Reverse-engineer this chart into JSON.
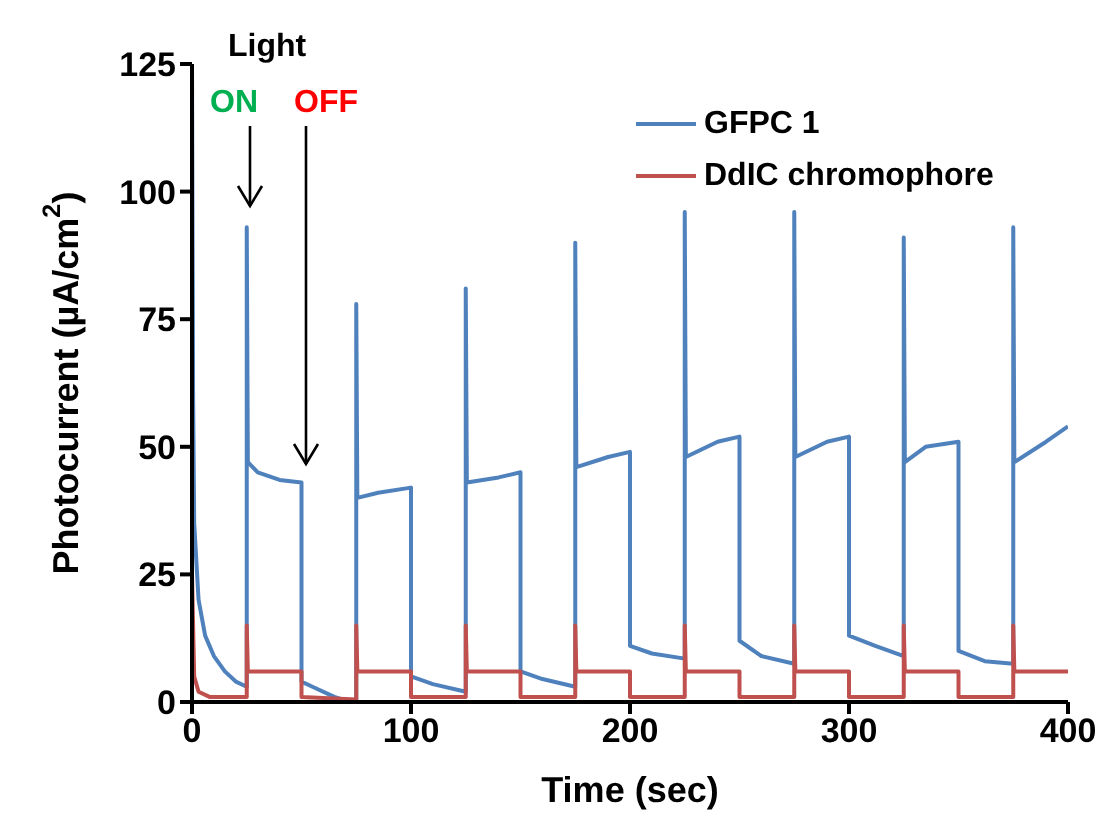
{
  "chart_data": {
    "type": "line",
    "xlabel": "Time (sec)",
    "ylabel": "Photocurrent (µA/cm$^{2}$)",
    "xlim": [
      0,
      400
    ],
    "xticks": [
      0,
      100,
      200,
      300,
      400
    ],
    "ylim": [
      0,
      125
    ],
    "yticks": [
      0,
      25,
      50,
      75,
      100,
      125
    ],
    "legend": "top right",
    "marker": "none",
    "annotations": [
      "Light",
      "ON",
      "OFF"
    ],
    "series": [
      {
        "name": "GFPC 1",
        "color": "#4f81bd",
        "x": [
          0,
          0.5,
          1,
          3,
          6,
          10,
          15,
          20,
          25,
          25,
          25.5,
          30,
          40,
          50,
          50,
          55,
          65,
          72,
          75,
          75,
          75.5,
          85,
          100,
          100,
          110,
          125,
          125,
          125.5,
          140,
          150,
          150,
          160,
          175,
          175,
          175.5,
          190,
          200,
          200,
          210,
          225,
          225,
          225.5,
          240,
          250,
          250,
          260,
          275,
          275,
          275.5,
          290,
          300,
          300,
          312,
          325,
          325,
          325.5,
          335,
          350,
          350,
          362,
          375,
          375,
          375.5,
          390,
          400
        ],
        "values": [
          125,
          60,
          35,
          20,
          13,
          9,
          6,
          4,
          3,
          93,
          47,
          45,
          43.5,
          43,
          4,
          3,
          1,
          0,
          0,
          78,
          40,
          41,
          42,
          5,
          3.5,
          2,
          81,
          43,
          44,
          45,
          6,
          4.5,
          3,
          90,
          46,
          48,
          49,
          11,
          9.5,
          8.5,
          96,
          48,
          51,
          52,
          12,
          9,
          7.5,
          96,
          48,
          51,
          52,
          13,
          11,
          9,
          91,
          47,
          50,
          51,
          10,
          8,
          7.5,
          93,
          47,
          51,
          54
        ]
      },
      {
        "name": "DdIC chromophore",
        "color": "#c0504d",
        "x": [
          0,
          1,
          3,
          8,
          25,
          25,
          25.5,
          50,
          50,
          75,
          75,
          75.5,
          100,
          100,
          125,
          125,
          125.5,
          150,
          150,
          175,
          175,
          175.5,
          200,
          200,
          225,
          225,
          225.5,
          250,
          250,
          275,
          275,
          275.5,
          300,
          300,
          325,
          325,
          325.5,
          350,
          350,
          375,
          375,
          375.5,
          400
        ],
        "values": [
          25,
          5,
          2,
          1,
          1,
          15,
          6,
          6,
          1,
          0.5,
          15,
          6,
          6,
          1,
          1,
          15,
          6,
          6,
          1,
          1,
          15,
          6,
          6,
          1,
          1,
          15,
          6,
          6,
          1,
          1,
          15,
          6,
          6,
          1,
          1,
          15,
          6,
          6,
          1,
          1,
          15,
          6,
          6
        ]
      }
    ]
  }
}
